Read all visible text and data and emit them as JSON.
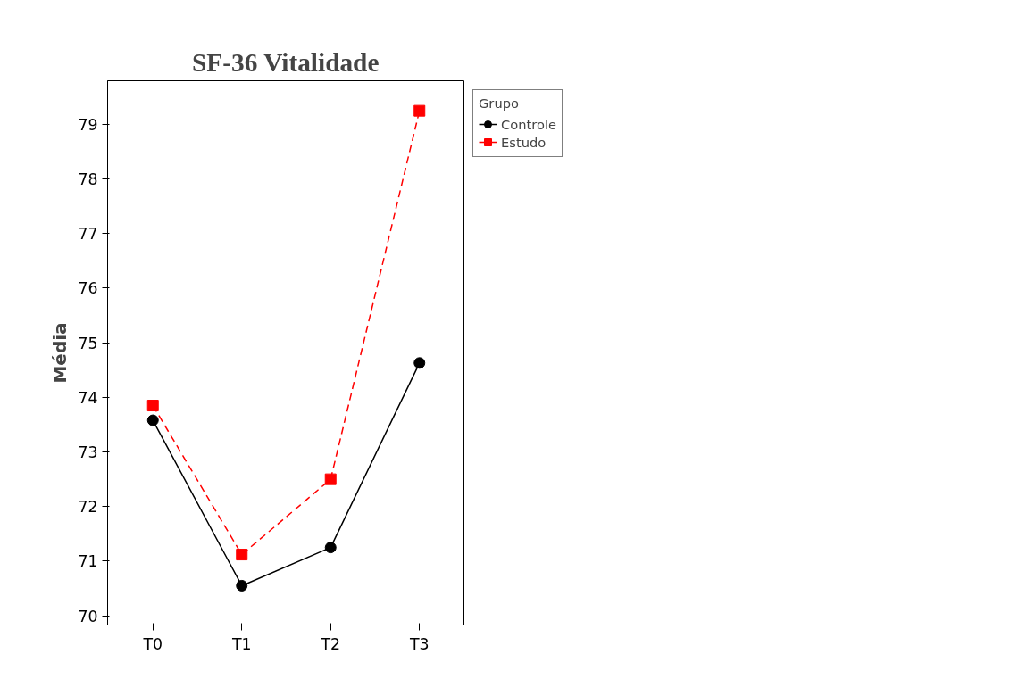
{
  "chart_data": {
    "type": "line",
    "title": "SF-36 Vitalidade",
    "ylabel": "Média",
    "legend_title": "Grupo",
    "categories": [
      "T0",
      "T1",
      "T2",
      "T3"
    ],
    "series": [
      {
        "name": "Controle",
        "color": "#000000",
        "values": [
          73.58,
          70.55,
          71.25,
          74.63
        ],
        "marker": "circle",
        "line_style": "solid"
      },
      {
        "name": "Estudo",
        "color": "#ff0000",
        "values": [
          73.85,
          71.12,
          72.5,
          79.25
        ],
        "marker": "square",
        "line_style": "dashed"
      }
    ],
    "ylim": [
      69.83,
      79.8
    ],
    "yticks": [
      70,
      71,
      72,
      73,
      74,
      75,
      76,
      77,
      78,
      79
    ],
    "grid": false,
    "legend": "top right"
  }
}
